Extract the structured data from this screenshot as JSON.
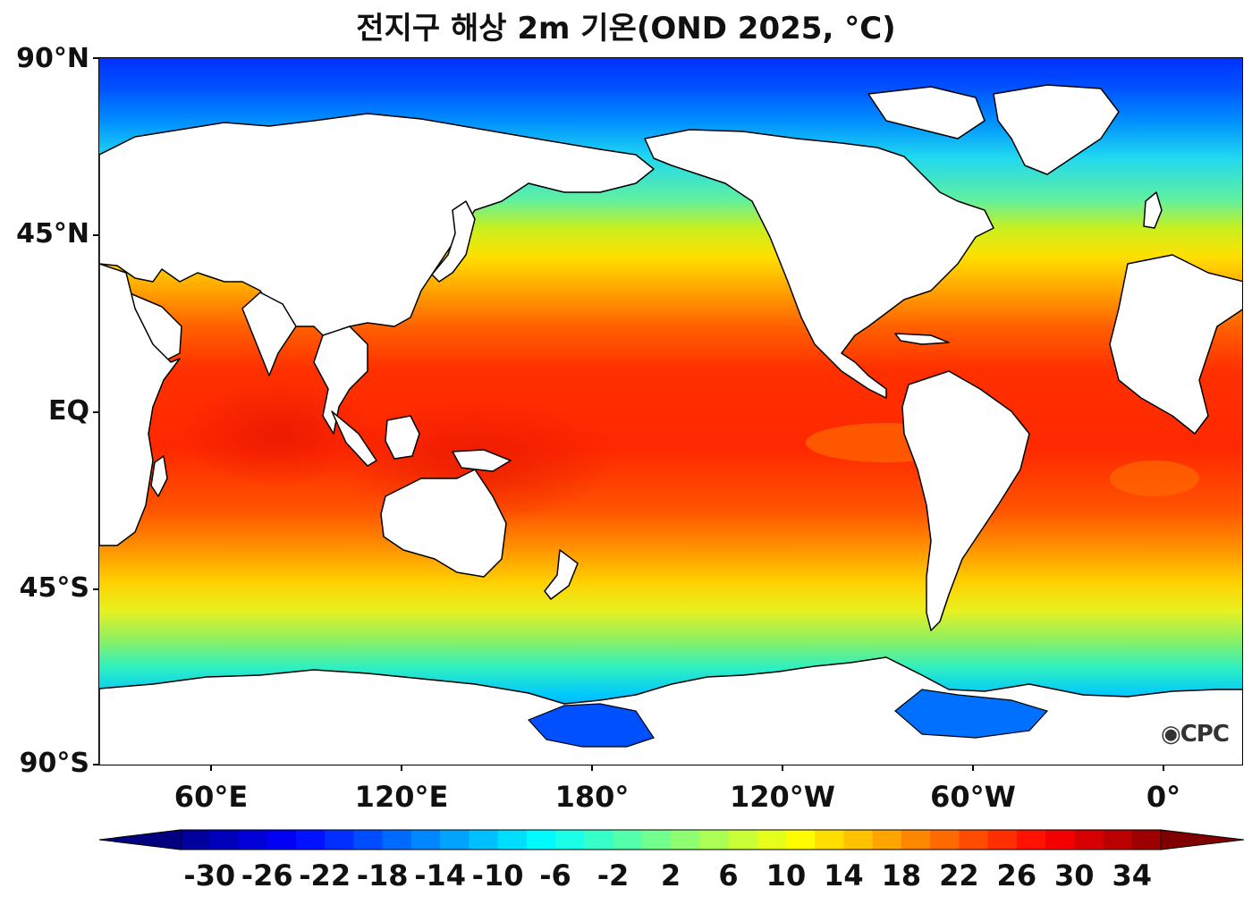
{
  "title": "전지구 해상 2m 기온(OND 2025, °C)",
  "logo_text": "CPC",
  "lat_labels": [
    "90°N",
    "45°N",
    "EQ",
    "45°S",
    "90°S"
  ],
  "lon_labels": [
    "60°E",
    "120°E",
    "180°",
    "120°W",
    "60°W",
    "0°"
  ],
  "colorbar": {
    "tick_labels": [
      "-30",
      "-26",
      "-22",
      "-18",
      "-14",
      "-10",
      "-6",
      "-2",
      "2",
      "6",
      "10",
      "14",
      "18",
      "22",
      "26",
      "30",
      "34"
    ],
    "min": -34,
    "max": 38,
    "step": 2,
    "extend": "both"
  },
  "colors": {
    "land": "#ffffff",
    "coast": "#000000",
    "cold_extreme": "#00007f",
    "warm_extreme": "#7f0000"
  }
}
